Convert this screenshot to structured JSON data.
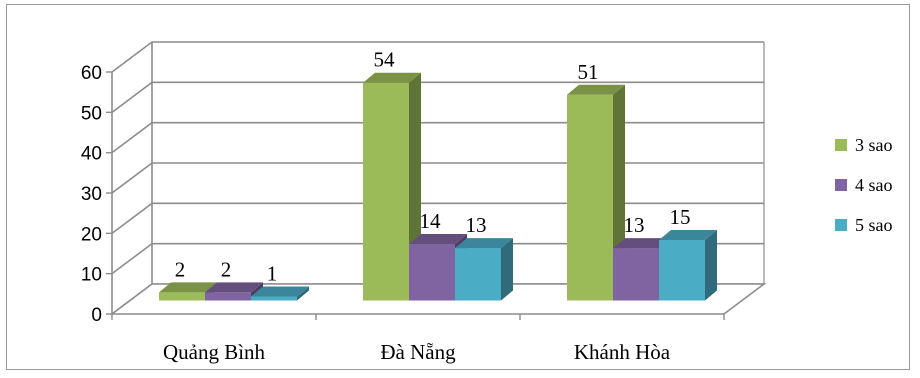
{
  "chart_data": {
    "type": "bar",
    "title": "",
    "xlabel": "",
    "ylabel": "",
    "categories": [
      "Quảng Bình",
      "Đà Nẵng",
      "Khánh Hòa"
    ],
    "series": [
      {
        "name": "3 sao",
        "values": [
          2,
          54,
          51
        ],
        "color": "#9BBB59"
      },
      {
        "name": "4 sao",
        "values": [
          2,
          14,
          13
        ],
        "color": "#8064A2"
      },
      {
        "name": "5 sao",
        "values": [
          1,
          13,
          15
        ],
        "color": "#4BACC6"
      }
    ],
    "ylim": [
      0,
      60
    ],
    "yticks": [
      "0",
      "10",
      "20",
      "30",
      "40",
      "50",
      "60"
    ],
    "grid": true,
    "legend_position": "right",
    "style": "3d-clustered-column"
  }
}
